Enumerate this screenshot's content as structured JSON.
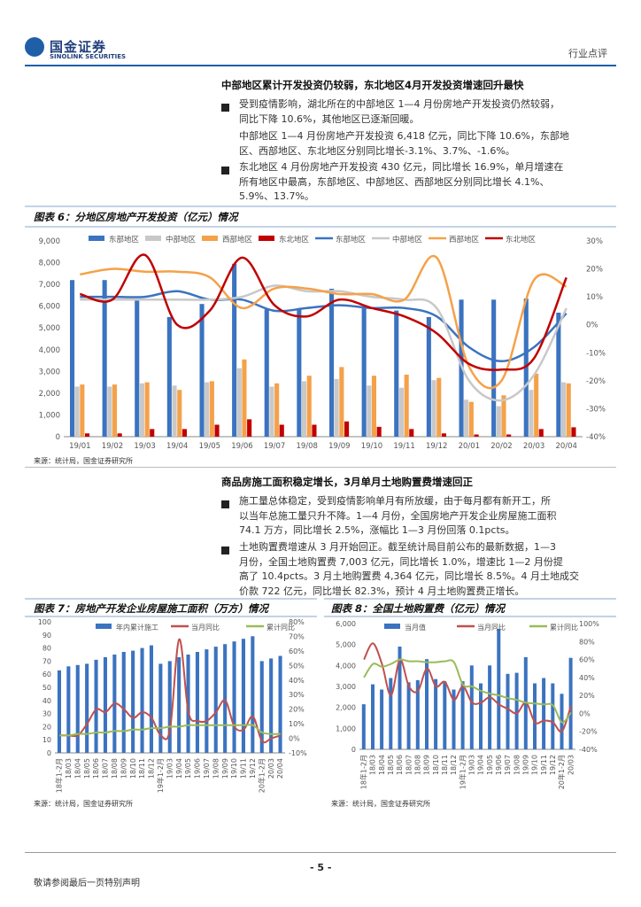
{
  "header": {
    "logo_cn": "国金证券",
    "logo_en": "SINOLINK SECURITIES",
    "section": "行业点评"
  },
  "section1": {
    "heading": "中部地区累计开发投资仍较弱，东北地区4月开发投资增速回升最快",
    "b1": [
      "受到疫情影响，湖北所在的中部地区 1—4 月份房地产开发投资仍然较弱，",
      "同比下降 10.6%，其他地区已逐渐回暖。"
    ],
    "p1": [
      "中部地区 1—4 月份房地产开发投资 6,418 亿元，同比下降 10.6%，东部地",
      "区、西部地区、东北地区分别同比增长-3.1%、3.7%、-1.6%。"
    ],
    "b2": [
      "东北地区 4 月份房地产开发投资 430 亿元，同比增长 16.9%，单月增速在",
      "所有地区中最高，东部地区、中部地区、西部地区分别同比增长 4.1%、",
      "5.9%、13.7%。"
    ]
  },
  "fig6": {
    "title": "图表 6：分地区房地产开发投资（亿元）情况",
    "source": "来源：统计局，国金证券研究所"
  },
  "section2": {
    "heading": "商品房施工面积稳定增长，3月单月土地购置费增速回正",
    "b1": [
      "施工量总体稳定，受到疫情影响单月有所放缓，由于每月都有新开工，所",
      "以当年总施工量只升不降。1—4 月份，全国房地产开发企业房屋施工面积",
      "74.1 万方，同比增长 2.5%，涨幅比 1—3 月份回落 0.1pcts。"
    ],
    "b2": [
      "土地购置费增速从 3 月开始回正。截至统计局目前公布的最新数据，1—3",
      "月份，全国土地购置费 7,003 亿元，同比增长 1.0%，增速比 1—2 月份提",
      "高了 10.4pcts。3 月土地购置费 4,364 亿元，同比增长 8.5%。4 月土地成交",
      "价款 722 亿元，同比增长 82.3%，预计 4 月土地购置费正增长。"
    ]
  },
  "fig7": {
    "title": "图表 7：房地产开发企业房屋施工面积（万方）情况",
    "source": "来源：统计局，国金证券研究所"
  },
  "fig8": {
    "title": "图表 8：全国土地购置费（亿元）情况",
    "source": "来源：统计局，国金证券研究所"
  },
  "footer": {
    "page": "- 5 -",
    "note": "敬请参阅最后一页特别声明"
  },
  "chart_data": [
    {
      "type": "bar",
      "categories": [
        "19/01",
        "19/02",
        "19/03",
        "19/04",
        "19/05",
        "19/06",
        "19/07",
        "19/08",
        "19/09",
        "19/10",
        "19/11",
        "19/12",
        "20/01",
        "20/02",
        "20/03",
        "20/04"
      ],
      "series": [
        {
          "name": "东部地区",
          "kind": "bar",
          "axis": "left",
          "color": "#3b73c0",
          "values": [
            7200,
            7200,
            6300,
            5500,
            6100,
            7950,
            5850,
            5850,
            6800,
            5900,
            5800,
            5500,
            6300,
            6300,
            6350,
            5700
          ]
        },
        {
          "name": "中部地区",
          "kind": "bar",
          "axis": "left",
          "color": "#c8c8c8",
          "values": [
            2300,
            2300,
            2450,
            2350,
            2500,
            3150,
            2300,
            2550,
            2650,
            2350,
            2250,
            2600,
            1700,
            1400,
            2150,
            2500
          ]
        },
        {
          "name": "西部地区",
          "kind": "bar",
          "axis": "left",
          "color": "#f5a14a",
          "values": [
            2400,
            2400,
            2500,
            2150,
            2550,
            3550,
            2450,
            2800,
            3200,
            2800,
            2850,
            2700,
            1600,
            1900,
            2900,
            2450
          ]
        },
        {
          "name": "东北地区",
          "kind": "bar",
          "axis": "left",
          "color": "#c00000",
          "values": [
            150,
            150,
            350,
            350,
            550,
            800,
            550,
            550,
            700,
            450,
            350,
            150,
            100,
            100,
            350,
            430
          ]
        },
        {
          "name": "东部地区",
          "kind": "line",
          "axis": "right",
          "color": "#3b73c0",
          "values": [
            10,
            10,
            10,
            12,
            9,
            9,
            5,
            6,
            7,
            6,
            6,
            3,
            -8,
            -13,
            -8,
            4.1
          ]
        },
        {
          "name": "中部地区",
          "kind": "line",
          "axis": "right",
          "color": "#c8c8c8",
          "values": [
            9,
            9,
            9,
            9,
            9,
            10,
            14,
            12,
            12,
            10,
            9,
            6,
            -20,
            -27,
            -18,
            5.9
          ]
        },
        {
          "name": "西部地区",
          "kind": "line",
          "axis": "right",
          "color": "#f5a14a",
          "values": [
            18,
            20,
            19,
            19,
            17,
            6,
            13,
            13,
            11,
            11,
            9,
            24,
            -15,
            -20,
            16,
            13.7
          ]
        },
        {
          "name": "东北地区",
          "kind": "line",
          "axis": "right",
          "color": "#c00000",
          "values": [
            11,
            9,
            25,
            0,
            5,
            24,
            7,
            3,
            9,
            6,
            3,
            -3,
            -14,
            -16,
            -12,
            16.9
          ]
        }
      ],
      "ylim": [
        0,
        9000
      ],
      "y2lim": [
        -40,
        30
      ],
      "yticks": [
        "0",
        "1,000",
        "2,000",
        "3,000",
        "4,000",
        "5,000",
        "6,000",
        "7,000",
        "8,000",
        "9,000"
      ],
      "y2ticks": [
        "-40%",
        "-30%",
        "-20%",
        "-10%",
        "0%",
        "10%",
        "20%",
        "30%"
      ],
      "legend": [
        "东部地区",
        "中部地区",
        "西部地区",
        "东北地区",
        "东部地区",
        "中部地区",
        "西部地区",
        "东北地区"
      ]
    },
    {
      "type": "bar",
      "categories": [
        "18年1-2月",
        "18/03",
        "18/04",
        "18/05",
        "18/06",
        "18/07",
        "18/08",
        "18/09",
        "18/10",
        "18/11",
        "18/12",
        "19年1-2月",
        "19/03",
        "19/04",
        "19/05",
        "19/06",
        "19/07",
        "19/08",
        "19/09",
        "19/10",
        "19/11",
        "19/12",
        "20年1-2月",
        "20/03",
        "20/04"
      ],
      "xlabels": [
        "18年1-2月",
        "18/03",
        "18/04",
        "18/05",
        "18/06",
        "18/07",
        "18/08",
        "18/09",
        "18/10",
        "18/11",
        "18/12",
        "19年1-2月",
        "19/03",
        "19/04",
        "19/05",
        "19/06",
        "19/07",
        "19/08",
        "19/09",
        "19/10",
        "19/11",
        "19/12",
        "20年1-2月",
        "20/03",
        "20/04"
      ],
      "series": [
        {
          "name": "年内累计施工",
          "kind": "bar",
          "axis": "left",
          "color": "#3b73c0",
          "values": [
            63,
            66,
            67,
            68,
            71,
            73,
            75,
            77,
            78,
            80,
            82,
            68,
            70,
            73,
            75,
            77,
            79,
            81,
            83,
            85,
            87,
            89,
            70,
            72,
            74
          ]
        },
        {
          "name": "当月同比",
          "kind": "line",
          "axis": "right",
          "color": "#c0504d",
          "values": [
            2,
            2,
            2,
            10,
            20,
            18,
            24,
            20,
            14,
            18,
            14,
            2,
            6,
            68,
            18,
            12,
            12,
            18,
            26,
            8,
            6,
            15,
            -2,
            0,
            2
          ]
        },
        {
          "name": "累计同比",
          "kind": "line",
          "axis": "right",
          "color": "#9bbb59",
          "values": [
            2,
            2,
            3,
            3,
            4,
            4,
            5,
            5,
            6,
            6,
            7,
            7,
            8,
            8,
            9,
            9,
            9,
            9,
            9,
            9,
            9,
            9,
            4,
            3,
            3
          ]
        }
      ],
      "ylim": [
        0,
        100
      ],
      "y2lim": [
        -10,
        80
      ],
      "yticks": [
        "0",
        "10",
        "20",
        "30",
        "40",
        "50",
        "60",
        "70",
        "80",
        "90",
        "100"
      ],
      "y2ticks": [
        "-10%",
        "0%",
        "10%",
        "20%",
        "30%",
        "40%",
        "50%",
        "60%",
        "70%",
        "80%"
      ],
      "legend": [
        "年内累计施工",
        "当月同比",
        "累计同比"
      ]
    },
    {
      "type": "bar",
      "categories": [
        "18年1-2月",
        "18/03",
        "18/04",
        "18/05",
        "18/06",
        "18/07",
        "18/08",
        "18/09",
        "18/10",
        "18/11",
        "18/12",
        "19年1-2月",
        "19/03",
        "19/04",
        "19/05",
        "19/06",
        "19/07",
        "19/08",
        "19/09",
        "19/10",
        "19/11",
        "19/12",
        "20年1-2月",
        "20/03"
      ],
      "series": [
        {
          "name": "当月值",
          "kind": "bar",
          "axis": "left",
          "color": "#3b73c0",
          "values": [
            2150,
            3100,
            2850,
            3400,
            4900,
            3200,
            3300,
            4300,
            3350,
            3250,
            2850,
            3250,
            4000,
            3150,
            4000,
            5750,
            3600,
            3650,
            4400,
            3150,
            3400,
            3150,
            2650,
            4364
          ]
        },
        {
          "name": "当月同比",
          "kind": "line",
          "axis": "right",
          "color": "#c0504d",
          "values": [
            60,
            78,
            55,
            20,
            60,
            30,
            25,
            50,
            30,
            35,
            15,
            30,
            12,
            12,
            18,
            10,
            5,
            0,
            12,
            -10,
            -8,
            -10,
            -20,
            8.5
          ]
        },
        {
          "name": "累计同比",
          "kind": "line",
          "axis": "right",
          "color": "#9bbb59",
          "values": [
            40,
            55,
            52,
            55,
            60,
            58,
            58,
            57,
            57,
            58,
            57,
            32,
            30,
            25,
            22,
            20,
            17,
            15,
            12,
            11,
            10,
            9,
            -10,
            1
          ]
        }
      ],
      "ylim": [
        0,
        6000
      ],
      "y2lim": [
        -40,
        100
      ],
      "yticks": [
        "0",
        "1,000",
        "2,000",
        "3,000",
        "4,000",
        "5,000",
        "6,000"
      ],
      "y2ticks": [
        "-40%",
        "-20%",
        "0%",
        "20%",
        "40%",
        "60%",
        "80%",
        "100%"
      ],
      "legend": [
        "当月值",
        "当月同比",
        "累计同比"
      ]
    }
  ]
}
